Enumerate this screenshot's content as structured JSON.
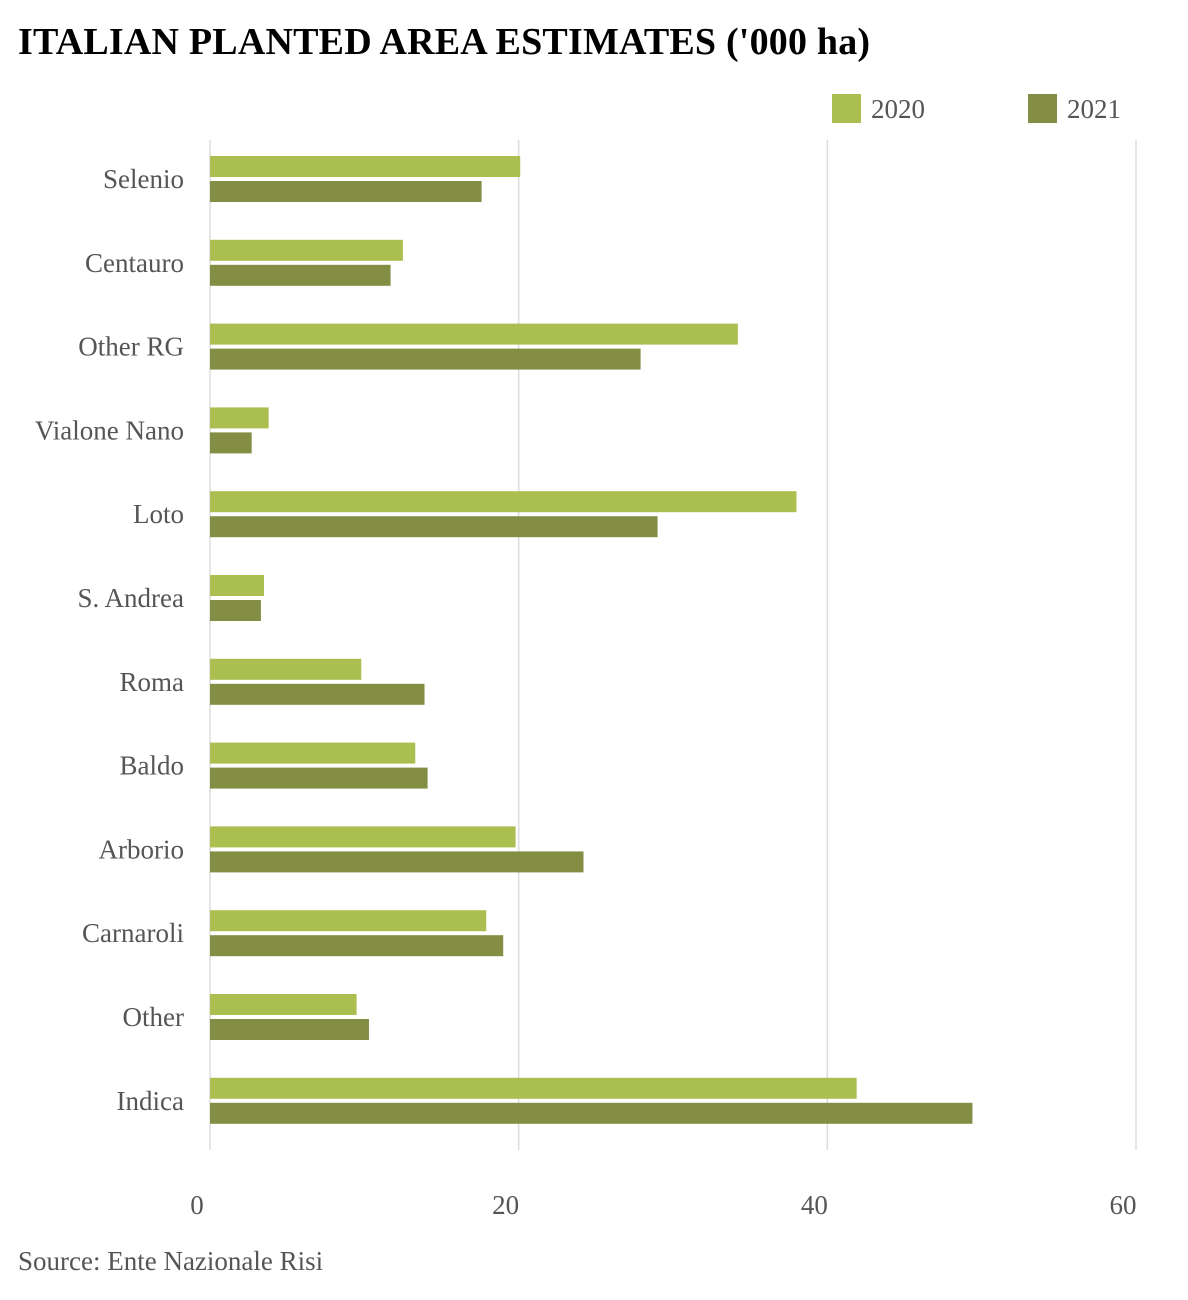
{
  "chart_data": {
    "type": "bar",
    "orientation": "horizontal",
    "title": "ITALIAN PLANTED AREA ESTIMATES ('000 ha)",
    "source": "Source: Ente Nazionale Risi",
    "categories": [
      "Selenio",
      "Centauro",
      "Other RG",
      "Vialone Nano",
      "Loto",
      "S. Andrea",
      "Roma",
      "Baldo",
      "Arborio",
      "Carnaroli",
      "Other",
      "Indica"
    ],
    "series": [
      {
        "name": "2020",
        "color": "#aabf4f",
        "values": [
          20.1,
          12.5,
          34.2,
          3.8,
          38.0,
          3.5,
          9.8,
          13.3,
          19.8,
          17.9,
          9.5,
          41.9
        ]
      },
      {
        "name": "2021",
        "color": "#838e44",
        "values": [
          17.6,
          11.7,
          27.9,
          2.7,
          29.0,
          3.3,
          13.9,
          14.1,
          24.2,
          19.0,
          10.3,
          49.4
        ]
      }
    ],
    "xlim": [
      0,
      60
    ],
    "xticks": [
      "0",
      "20",
      "40",
      "60"
    ],
    "grid": true,
    "legend_position": "top-right"
  }
}
